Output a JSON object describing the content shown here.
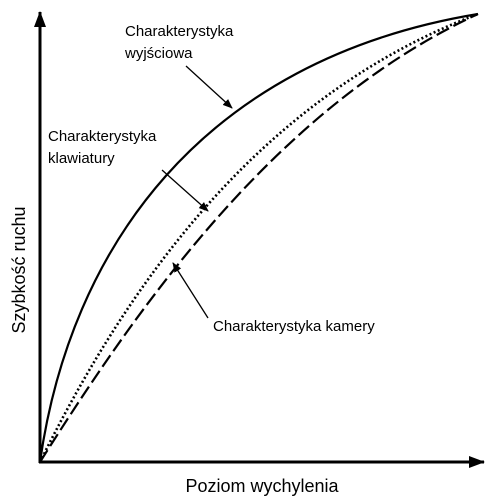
{
  "y_axis_label": "Szybkość ruchu",
  "x_axis_label": "Poziom wychylenia",
  "curves": [
    {
      "label_lines": [
        "Charakterystyka",
        "wyjściowa"
      ]
    },
    {
      "label_lines": [
        "Charakterystyka",
        "klawiatury"
      ]
    },
    {
      "label_lines": [
        "Charakterystyka kamery"
      ]
    }
  ]
}
